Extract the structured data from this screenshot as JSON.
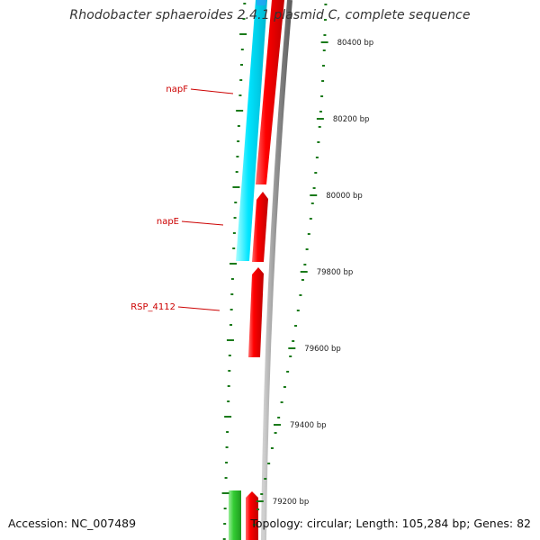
{
  "header": {
    "title": "Rhodobacter sphaeroides 2.4.1 plasmid C, complete sequence"
  },
  "footer": {
    "accession_label": "Accession:",
    "accession": "NC_007489",
    "topology_label": "Topology:",
    "topology": "circular",
    "length_label": "Length:",
    "length": "105,284 bp",
    "genes_label": "Genes:",
    "genes": "82"
  },
  "chart_data": {
    "type": "genome-map",
    "scale_labels": [
      {
        "bp": 80400,
        "label": "80400 bp"
      },
      {
        "bp": 80200,
        "label": "80200 bp"
      },
      {
        "bp": 80000,
        "label": "80000 bp"
      },
      {
        "bp": 79800,
        "label": "79800 bp"
      },
      {
        "bp": 79600,
        "label": "79600 bp"
      },
      {
        "bp": 79400,
        "label": "79400 bp"
      },
      {
        "bp": 79200,
        "label": "79200 bp"
      }
    ],
    "gene_labels": [
      {
        "name": "napF",
        "color": "#cc0000"
      },
      {
        "name": "napE",
        "color": "#cc0000"
      },
      {
        "name": "RSP_4112",
        "color": "#cc0000"
      }
    ],
    "feature_colors": {
      "cds": "#ff0000",
      "region": "#00e5ff",
      "other": "#33cc33",
      "backbone": "#8c8c8c",
      "ticks": "#1a7a1a"
    }
  }
}
